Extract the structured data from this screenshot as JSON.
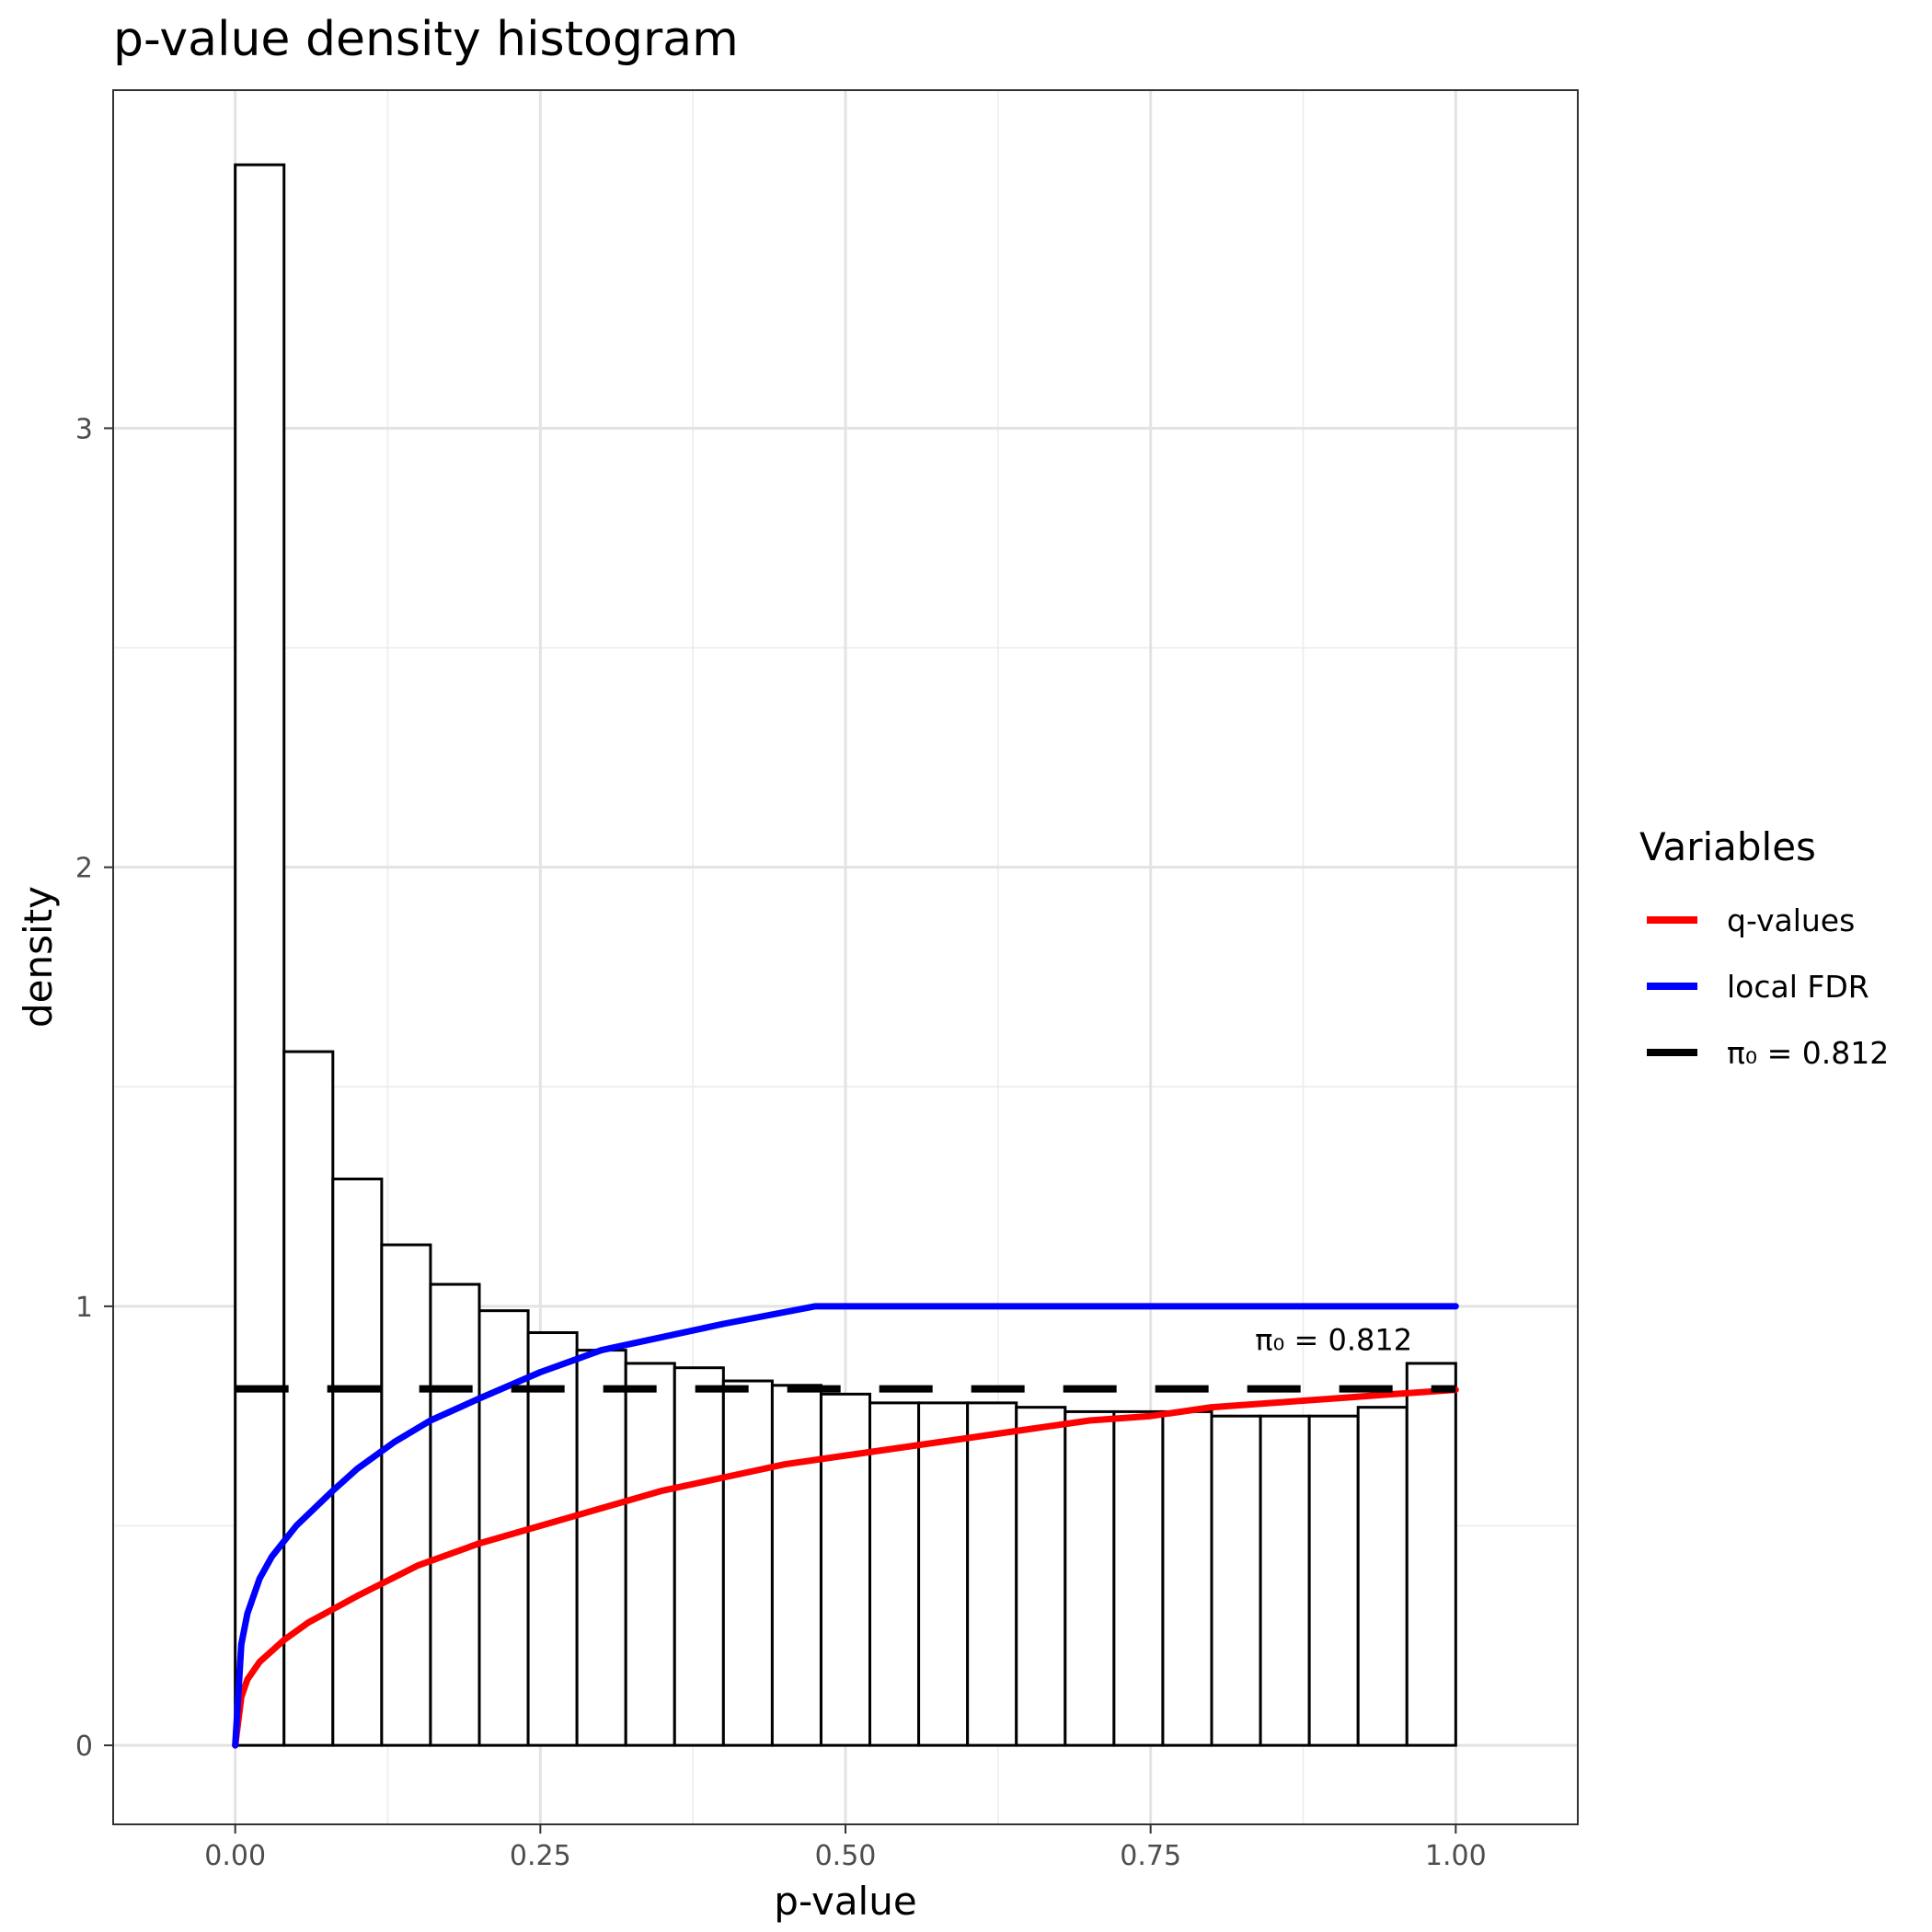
{
  "title": "p-value density histogram",
  "chart_data": {
    "type": "bar",
    "title": "p-value density histogram",
    "xlabel": "p-value",
    "ylabel": "density",
    "xlim": [
      -0.1,
      1.1
    ],
    "ylim": [
      -0.18,
      3.77
    ],
    "x_ticks": [
      0,
      0.25,
      0.5,
      0.75,
      1
    ],
    "x_tick_labels": [
      "0.00",
      "0.25",
      "0.50",
      "0.75",
      "1.00"
    ],
    "y_ticks": [
      0,
      1,
      2,
      3
    ],
    "y_tick_labels": [
      "0",
      "1",
      "2",
      "3"
    ],
    "grid": true,
    "histogram": {
      "bin_width": 0.04,
      "bin_starts": [
        0,
        0.04,
        0.08,
        0.12,
        0.16,
        0.2,
        0.24,
        0.28,
        0.32,
        0.36,
        0.4,
        0.44,
        0.48,
        0.52,
        0.56,
        0.6,
        0.64,
        0.68,
        0.72,
        0.76,
        0.8,
        0.84,
        0.88,
        0.92,
        0.96
      ],
      "density": [
        3.6,
        1.58,
        1.29,
        1.14,
        1.05,
        0.99,
        0.94,
        0.9,
        0.87,
        0.86,
        0.83,
        0.82,
        0.8,
        0.78,
        0.78,
        0.78,
        0.77,
        0.76,
        0.76,
        0.76,
        0.75,
        0.75,
        0.75,
        0.77,
        0.87
      ],
      "fill": "#ffffff",
      "stroke": "#000000"
    },
    "series": [
      {
        "name": "q-values",
        "type": "line",
        "color": "#ff0000",
        "x": [
          0,
          0.005,
          0.01,
          0.02,
          0.04,
          0.06,
          0.08,
          0.1,
          0.15,
          0.2,
          0.25,
          0.3,
          0.35,
          0.4,
          0.45,
          0.5,
          0.55,
          0.6,
          0.65,
          0.7,
          0.75,
          0.8,
          0.85,
          0.9,
          0.95,
          1.0
        ],
        "y": [
          0,
          0.11,
          0.15,
          0.19,
          0.24,
          0.28,
          0.31,
          0.34,
          0.41,
          0.46,
          0.5,
          0.54,
          0.58,
          0.61,
          0.64,
          0.66,
          0.68,
          0.7,
          0.72,
          0.74,
          0.75,
          0.77,
          0.78,
          0.79,
          0.8,
          0.81
        ]
      },
      {
        "name": "local FDR",
        "type": "line",
        "color": "#0000ff",
        "x": [
          0,
          0.005,
          0.01,
          0.02,
          0.03,
          0.05,
          0.08,
          0.1,
          0.13,
          0.16,
          0.2,
          0.25,
          0.3,
          0.35,
          0.4,
          0.475,
          0.5,
          0.6,
          0.7,
          0.8,
          0.9,
          1.0
        ],
        "y": [
          0,
          0.23,
          0.3,
          0.38,
          0.43,
          0.5,
          0.58,
          0.63,
          0.69,
          0.74,
          0.79,
          0.85,
          0.9,
          0.93,
          0.96,
          1.0,
          1.0,
          1.0,
          1.0,
          1.0,
          1.0,
          1.0
        ]
      },
      {
        "name": "π₀ = 0.812",
        "type": "hline",
        "color": "#000000",
        "dashed": true,
        "y_value": 0.812,
        "x_range": [
          0,
          1
        ]
      }
    ],
    "annotation": {
      "text": "π₀ = 0.812",
      "x": 0.9,
      "y": 0.9
    },
    "legend": {
      "title": "Variables",
      "placement": "right",
      "items": [
        {
          "label": "q-values",
          "color": "#ff0000",
          "dashed": false
        },
        {
          "label": "local FDR",
          "color": "#0000ff",
          "dashed": false
        },
        {
          "label": "π₀ = 0.812",
          "color": "#000000",
          "dashed": true
        }
      ]
    }
  }
}
